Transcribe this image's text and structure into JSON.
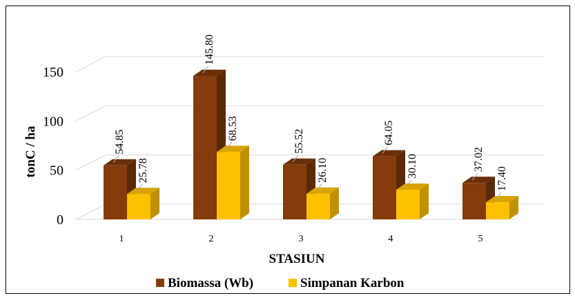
{
  "chart_data": {
    "type": "bar",
    "style": "3d-clustered-column",
    "categories": [
      "1",
      "2",
      "3",
      "4",
      "5"
    ],
    "series": [
      {
        "name": "Biomassa (Wb)",
        "values": [
          54.85,
          145.8,
          55.52,
          64.05,
          37.02
        ],
        "labels": [
          "54.85",
          "145.80",
          "55.52",
          "64.05",
          "37.02"
        ],
        "color": "#843c0c",
        "side_color": "#5a2908",
        "top_color": "#6b3009"
      },
      {
        "name": "Simpanan Karbon",
        "values": [
          25.78,
          68.53,
          26.1,
          30.1,
          17.4
        ],
        "labels": [
          "25.78",
          "68.53",
          "26.10",
          "30.10",
          "17.40"
        ],
        "color": "#ffc000",
        "side_color": "#bf9000",
        "top_color": "#d9a300"
      }
    ],
    "title": "",
    "xlabel": "STASIUN",
    "ylabel": "tonC / ha",
    "ylim": [
      0,
      150
    ],
    "yticks": [
      0,
      50,
      100,
      150
    ],
    "ytick_labels": [
      "0",
      "50",
      "100",
      "150"
    ],
    "grid": true,
    "legend_position": "bottom"
  }
}
